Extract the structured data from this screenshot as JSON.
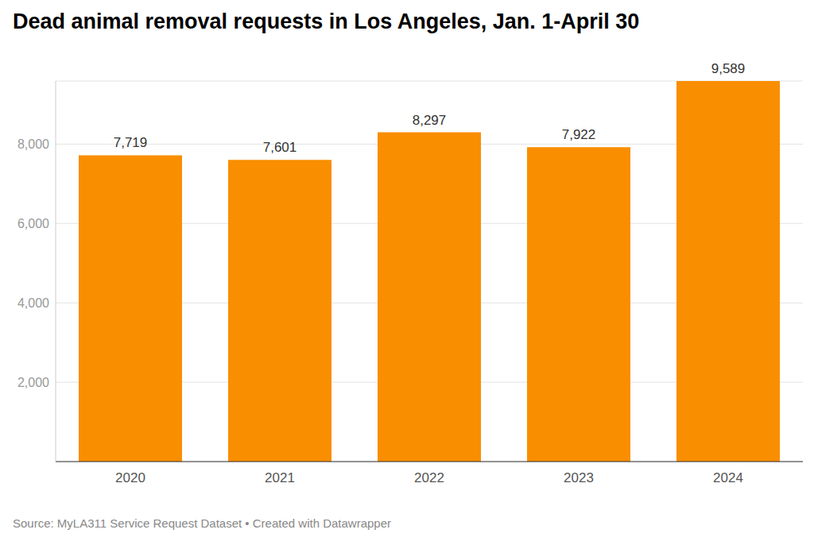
{
  "chart_data": {
    "type": "bar",
    "title": "Dead animal removal requests in Los Angeles, Jan. 1-April 30",
    "categories": [
      "2020",
      "2021",
      "2022",
      "2023",
      "2024"
    ],
    "values": [
      7719,
      7601,
      8297,
      7922,
      9589
    ],
    "value_labels": [
      "7,719",
      "7,601",
      "8,297",
      "7,922",
      "9,589"
    ],
    "color": "#f98e00",
    "ylim": [
      0,
      9589
    ],
    "yticks": [
      {
        "value": 2000,
        "label": "2,000"
      },
      {
        "value": 4000,
        "label": "4,000"
      },
      {
        "value": 6000,
        "label": "6,000"
      },
      {
        "value": 8000,
        "label": "8,000"
      }
    ],
    "grid": true,
    "data_labels": true,
    "source": "Source: MyLA311 Service Request Dataset • Created with Datawrapper"
  }
}
